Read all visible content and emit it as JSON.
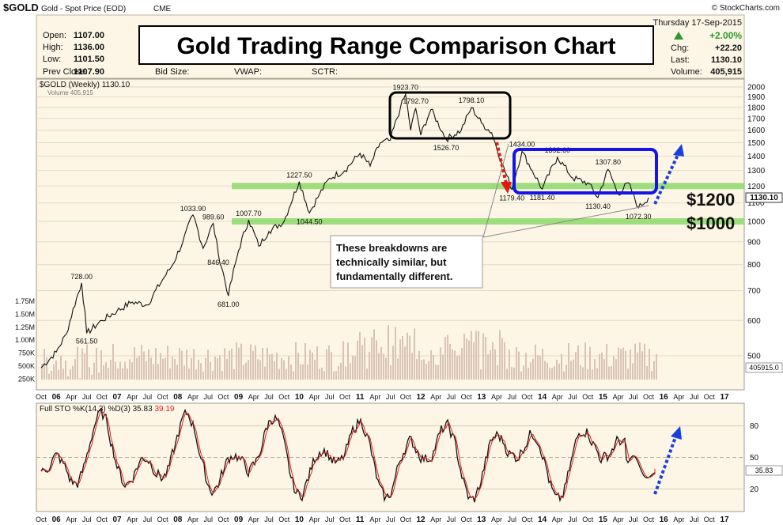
{
  "header": {
    "symbol": "$GOLD",
    "description": "Gold - Spot Price (EOD)",
    "exchange": "CME",
    "copyright": "© StockCharts.com",
    "day": "Thursday",
    "date": "17-Sep-2015",
    "open_label": "Open:",
    "open": "1107.00",
    "high_label": "High:",
    "high": "1136.00",
    "low_label": "Low:",
    "low": "1101.50",
    "prev_close_label": "Prev Close:",
    "prev_close": "1107.90",
    "bid_size_label": "Bid Size:",
    "vwap_label": "VWAP:",
    "sctr_label": "SCTR:",
    "change_pct": "+2.00%",
    "chg_label": "Chg:",
    "chg": "+22.20",
    "last_label": "Last:",
    "last": "1130.10",
    "volume_label": "Volume:",
    "volume": "405,915"
  },
  "title_box": "Gold Trading Range Comparison Chart",
  "legend": {
    "price": "$GOLD (Weekly) 1130.10",
    "volume": "Volume 405,915",
    "sto_prefix": "Full STO %K(14,3) %D(3)",
    "sto_k": "35.83",
    "sto_d": "39.19"
  },
  "price_labels": {
    "last_price_tag": "1130.10",
    "volume_tag": "405915.0",
    "sto_tag": "35.83",
    "level_1200": "$1200",
    "level_1000": "$1000"
  },
  "annotation": {
    "line1": "These breakdowns are",
    "line2": "technically similar, but",
    "line3": "fundamentally different."
  },
  "colors": {
    "plot_bg": "#fdf6e6",
    "price": "#111111",
    "volume_bar": "#d9c3b6",
    "green_band": "#8ed96b",
    "box_black": "#000000",
    "box_blue": "#1414e6",
    "arrow_red": "#e01818",
    "arrow_blue": "#1a3fe0",
    "sto_k": "#111111",
    "sto_d": "#e02020",
    "up": "#2b9a2b"
  },
  "chart_data": {
    "type": "line",
    "y_scale": "log",
    "ylim": [
      450,
      2050
    ],
    "y_ticks": [
      2000,
      1900,
      1800,
      1700,
      1600,
      1500,
      1400,
      1300,
      1200,
      1100,
      1000,
      900,
      800,
      700,
      600,
      500
    ],
    "volume_ticks": [
      "1.75M",
      "1.50M",
      "1.25M",
      "1.00M",
      "750K",
      "500K",
      "250K"
    ],
    "x_ticks": [
      "Oct",
      "06",
      "Apr",
      "Jul",
      "Oct",
      "07",
      "Apr",
      "Jul",
      "Oct",
      "08",
      "Apr",
      "Jul",
      "Oct",
      "09",
      "Apr",
      "Jul",
      "Oct",
      "10",
      "Apr",
      "Jul",
      "Oct",
      "11",
      "Apr",
      "Jul",
      "Oct",
      "12",
      "Apr",
      "Jul",
      "Oct",
      "13",
      "Apr",
      "Jul",
      "Oct",
      "14",
      "Apr",
      "Jul",
      "Oct",
      "15",
      "Apr",
      "Jul",
      "Oct",
      "16",
      "Apr",
      "Jul",
      "Oct",
      "17"
    ],
    "series": [
      {
        "points": [
          [
            "2005-09",
            470
          ],
          [
            "2005-12",
            510
          ],
          [
            "2006-02",
            560
          ],
          [
            "2006-05",
            728
          ],
          [
            "2006-06",
            561.5
          ],
          [
            "2006-09",
            600
          ],
          [
            "2006-12",
            630
          ],
          [
            "2007-03",
            660
          ],
          [
            "2007-06",
            650
          ],
          [
            "2007-09",
            740
          ],
          [
            "2007-11",
            800
          ],
          [
            "2008-01",
            900
          ],
          [
            "2008-03",
            1033.9
          ],
          [
            "2008-05",
            870
          ],
          [
            "2008-07",
            989.6
          ],
          [
            "2008-08",
            846.4
          ],
          [
            "2008-10",
            681
          ],
          [
            "2008-12",
            860
          ],
          [
            "2009-02",
            1007.7
          ],
          [
            "2009-04",
            880
          ],
          [
            "2009-06",
            950
          ],
          [
            "2009-09",
            1000
          ],
          [
            "2009-12",
            1227.5
          ],
          [
            "2010-02",
            1044.5
          ],
          [
            "2010-04",
            1150
          ],
          [
            "2010-06",
            1250
          ],
          [
            "2010-09",
            1300
          ],
          [
            "2010-12",
            1420
          ],
          [
            "2011-02",
            1330
          ],
          [
            "2011-04",
            1500
          ],
          [
            "2011-06",
            1520
          ],
          [
            "2011-08",
            1800
          ],
          [
            "2011-09",
            1923.7
          ],
          [
            "2011-10",
            1600
          ],
          [
            "2011-11",
            1792.7
          ],
          [
            "2011-12",
            1560
          ],
          [
            "2012-02",
            1780
          ],
          [
            "2012-05",
            1526.7
          ],
          [
            "2012-08",
            1600
          ],
          [
            "2012-10",
            1798.1
          ],
          [
            "2012-12",
            1660
          ],
          [
            "2013-02",
            1580
          ],
          [
            "2013-04",
            1350
          ],
          [
            "2013-06",
            1179.4
          ],
          [
            "2013-08",
            1434
          ],
          [
            "2013-10",
            1300
          ],
          [
            "2013-12",
            1181.4
          ],
          [
            "2014-03",
            1392.6
          ],
          [
            "2014-06",
            1250
          ],
          [
            "2014-09",
            1220
          ],
          [
            "2014-11",
            1130.4
          ],
          [
            "2015-01",
            1307.8
          ],
          [
            "2015-03",
            1150
          ],
          [
            "2015-05",
            1220
          ],
          [
            "2015-07",
            1072.3
          ],
          [
            "2015-09",
            1130.1
          ]
        ]
      }
    ],
    "annotations": [
      "728.00",
      "561.50",
      "1033.90",
      "989.60",
      "846.40",
      "681.00",
      "1007.70",
      "1227.50",
      "1044.50",
      "1923.70",
      "1792.70",
      "1798.10",
      "1526.70",
      "1434.00",
      "1392.60",
      "1307.80",
      "1179.40",
      "1181.40",
      "1130.40",
      "1072.30"
    ],
    "horizontal_bands": [
      1200,
      1000
    ],
    "stochastic": {
      "ylim": [
        0,
        100
      ],
      "y_ticks": [
        80,
        50,
        20
      ],
      "k_last": 35.83,
      "d_last": 39.19
    }
  }
}
